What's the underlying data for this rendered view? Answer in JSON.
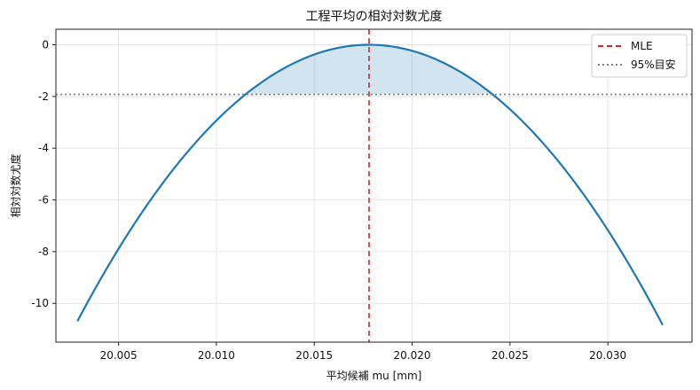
{
  "chart_data": {
    "type": "line",
    "title": "工程平均の相対対数尤度",
    "xlabel": "平均候補 mu [mm]",
    "ylabel": "相対対数尤度",
    "xlim": [
      20.0018,
      20.0343
    ],
    "ylim": [
      -11.5,
      0.6
    ],
    "x_ticks": [
      20.005,
      20.01,
      20.015,
      20.02,
      20.025,
      20.03
    ],
    "x_tick_labels": [
      "20.005",
      "20.010",
      "20.015",
      "20.020",
      "20.025",
      "20.030"
    ],
    "y_ticks": [
      0,
      -2,
      -4,
      -6,
      -8,
      -10
    ],
    "y_tick_labels": [
      "0",
      "-2",
      "-4",
      "-6",
      "-8",
      "-10"
    ],
    "grid": true,
    "legend_position": "top-right",
    "series": [
      {
        "kind": "curve",
        "color": "#1f77b4",
        "x": [
          20.0029,
          20.005,
          20.0075,
          20.01,
          20.0117,
          20.015,
          20.0178,
          20.02,
          20.0241,
          20.026,
          20.03,
          20.0328
        ],
        "y": [
          -10.9,
          -7.9,
          -4.9,
          -2.6,
          -1.92,
          -0.37,
          0.0,
          -0.23,
          -1.92,
          -3.25,
          -7.0,
          -10.9
        ]
      },
      {
        "name": "MLE",
        "kind": "vline",
        "x": 20.0178,
        "color": "#d62728",
        "style": "dashed"
      },
      {
        "name": "95%目安",
        "kind": "hline",
        "y": -1.92,
        "color": "#7f7f7f",
        "style": "dotted"
      },
      {
        "kind": "shaded-interval",
        "x_range": [
          20.0117,
          20.0241
        ],
        "color": "#1f77b4"
      }
    ],
    "legend": [
      "MLE",
      "95%目安"
    ]
  }
}
